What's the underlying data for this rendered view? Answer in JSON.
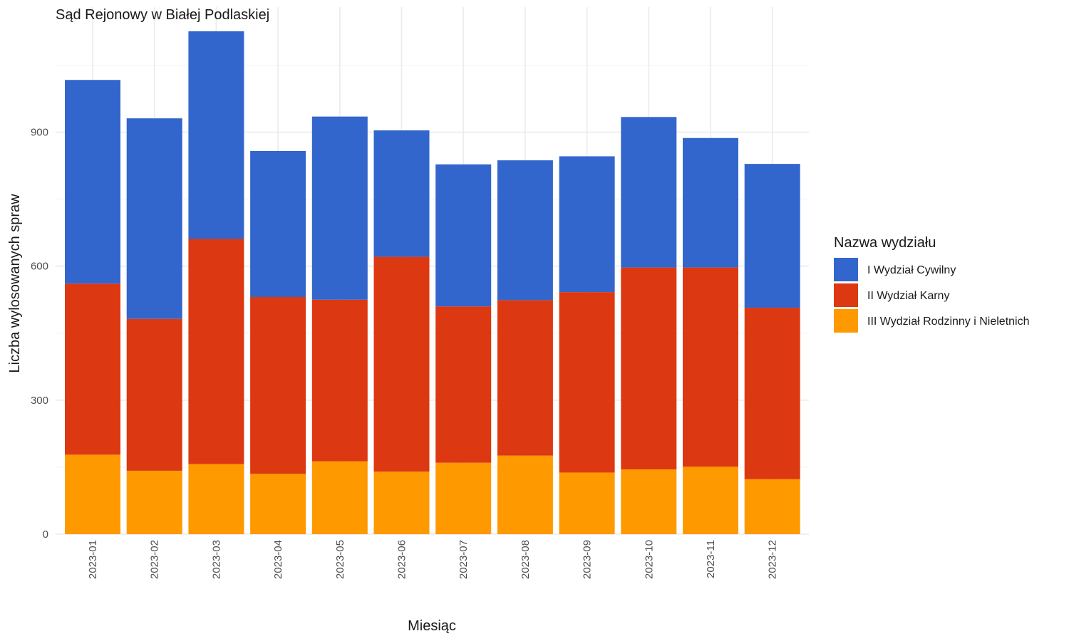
{
  "chart_data": {
    "type": "bar",
    "stacked": true,
    "title": "Sąd Rejonowy w Białej Podlaskiej",
    "xlabel": "Miesiąc",
    "ylabel": "Liczba wylosowanych spraw",
    "categories": [
      "2023-01",
      "2023-02",
      "2023-03",
      "2023-04",
      "2023-05",
      "2023-06",
      "2023-07",
      "2023-08",
      "2023-09",
      "2023-10",
      "2023-11",
      "2023-12"
    ],
    "series": [
      {
        "name": "III Wydział Rodzinny i Nieletnich",
        "color": "#FF9900",
        "values": [
          178,
          142,
          157,
          135,
          163,
          140,
          160,
          176,
          138,
          145,
          151,
          123
        ]
      },
      {
        "name": "II Wydział Karny",
        "color": "#DC3912",
        "values": [
          383,
          340,
          504,
          396,
          362,
          481,
          350,
          348,
          404,
          452,
          446,
          384
        ]
      },
      {
        "name": "I Wydział Cywilny",
        "color": "#3366CC",
        "values": [
          456,
          449,
          465,
          327,
          410,
          283,
          318,
          313,
          304,
          337,
          290,
          322
        ]
      }
    ],
    "ylim": [
      0,
      1180
    ],
    "yticks": [
      0,
      300,
      600,
      900
    ],
    "grid": true,
    "legend": {
      "title": "Nazwa wydziału",
      "position": "right",
      "order": [
        "I Wydział Cywilny",
        "II Wydział Karny",
        "III Wydział Rodzinny i Nieletnich"
      ]
    }
  }
}
